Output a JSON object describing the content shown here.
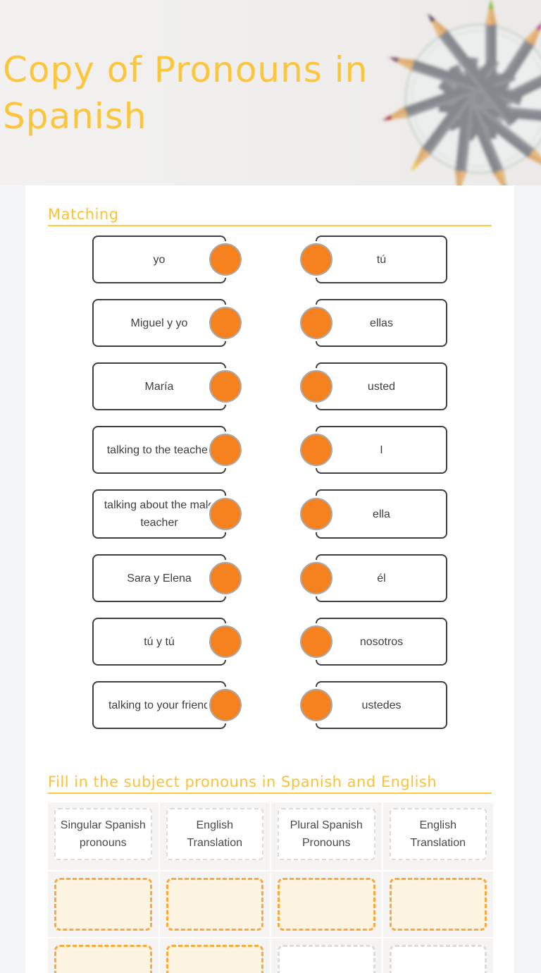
{
  "page": {
    "title": "Copy of Pronouns in Spanish"
  },
  "header_photo": {
    "icon": "pencil-cup-photo"
  },
  "matching": {
    "heading": "Matching",
    "pairs": [
      {
        "left": "yo",
        "right": "tú"
      },
      {
        "left": "Miguel y yo",
        "right": "ellas"
      },
      {
        "left": "María",
        "right": "usted"
      },
      {
        "left": "talking to the teacher",
        "right": "I"
      },
      {
        "left": "talking about the male teacher",
        "right": "ella"
      },
      {
        "left": "Sara y Elena",
        "right": "él"
      },
      {
        "left": "tú y tú",
        "right": "nosotros"
      },
      {
        "left": "talking to your friend",
        "right": "ustedes"
      }
    ]
  },
  "fill_table": {
    "heading": "Fill in the subject pronouns in Spanish and English",
    "columns": [
      "Singular Spanish pronouns",
      "English Translation",
      "Plural Spanish Pronouns",
      "English Translation"
    ],
    "rows": [
      {
        "cells": [
          "",
          "",
          "",
          ""
        ],
        "style": [
          "filled",
          "filled",
          "filled",
          "filled"
        ]
      },
      {
        "cells": [
          "",
          "",
          "",
          ""
        ],
        "style": [
          "filled",
          "filled",
          "empty",
          "empty"
        ]
      }
    ]
  },
  "colors": {
    "title_yellow": "#fbc53c",
    "rule_yellow": "#ffc83d",
    "connector_orange": "#f6821f",
    "answer_dash_orange": "#f8a93f",
    "answer_fill_cream": "#fcf4e0",
    "answer_dash_gray": "#dcdcdc",
    "box_border_dark": "#3f3f3f",
    "table_cell_gray": "#f5f4f2"
  }
}
